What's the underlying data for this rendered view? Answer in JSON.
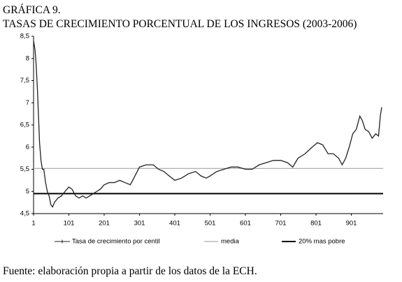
{
  "chart_data": {
    "type": "line",
    "title": "GRÁFICA 9.",
    "subtitle": "TASAS DE CRECIMIENTO PORCENTUAL DE LOS INGRESOS (2003-2006)",
    "note": "Fuente: elaboración propia a partir de los datos de la ECH.",
    "xlim": [
      1,
      991
    ],
    "xticks": [
      1,
      101,
      201,
      301,
      401,
      501,
      601,
      701,
      801,
      901
    ],
    "ylim": [
      4.5,
      8.5
    ],
    "yticks": [
      {
        "value": 4.5,
        "label": "4,5"
      },
      5,
      {
        "value": 5.5,
        "label": "5,5"
      },
      6,
      {
        "value": 6.5,
        "label": "6,5"
      },
      7,
      {
        "value": 7.5,
        "label": "7,5"
      },
      8,
      {
        "value": 8.5,
        "label": "8,5"
      }
    ],
    "series": [
      {
        "name": "Tasa de crecimiento por centil",
        "color": "#222222",
        "x": [
          1,
          5,
          8,
          12,
          15,
          18,
          22,
          26,
          30,
          35,
          40,
          45,
          50,
          55,
          60,
          70,
          80,
          90,
          101,
          110,
          120,
          130,
          140,
          150,
          160,
          170,
          180,
          190,
          201,
          215,
          230,
          245,
          260,
          275,
          285,
          301,
          320,
          340,
          355,
          370,
          385,
          401,
          420,
          440,
          460,
          475,
          490,
          501,
          520,
          540,
          560,
          580,
          601,
          620,
          640,
          660,
          680,
          701,
          720,
          735,
          750,
          770,
          790,
          805,
          820,
          835,
          850,
          865,
          875,
          885,
          895,
          905,
          915,
          925,
          932,
          940,
          950,
          960,
          970,
          978,
          983,
          987
        ],
        "values": [
          8.4,
          8.2,
          7.9,
          7.3,
          6.7,
          6.1,
          5.7,
          5.5,
          5.5,
          5.2,
          5.0,
          4.9,
          4.7,
          4.65,
          4.75,
          4.85,
          4.9,
          5.0,
          5.1,
          5.05,
          4.9,
          4.85,
          4.9,
          4.85,
          4.9,
          4.95,
          5.0,
          5.05,
          5.15,
          5.2,
          5.2,
          5.25,
          5.2,
          5.15,
          5.3,
          5.55,
          5.6,
          5.6,
          5.5,
          5.45,
          5.35,
          5.25,
          5.3,
          5.4,
          5.45,
          5.35,
          5.3,
          5.35,
          5.45,
          5.5,
          5.55,
          5.55,
          5.5,
          5.5,
          5.6,
          5.65,
          5.7,
          5.7,
          5.65,
          5.55,
          5.75,
          5.85,
          6.0,
          6.1,
          6.05,
          5.85,
          5.85,
          5.75,
          5.6,
          5.75,
          6.0,
          6.3,
          6.4,
          6.7,
          6.6,
          6.4,
          6.35,
          6.2,
          6.3,
          6.25,
          6.7,
          6.9
        ]
      }
    ],
    "reference_lines": [
      {
        "name": "media",
        "value": 5.52,
        "color": "#999999"
      },
      {
        "name": "20% mas pobre",
        "value": 4.95,
        "color": "#000000"
      }
    ]
  }
}
